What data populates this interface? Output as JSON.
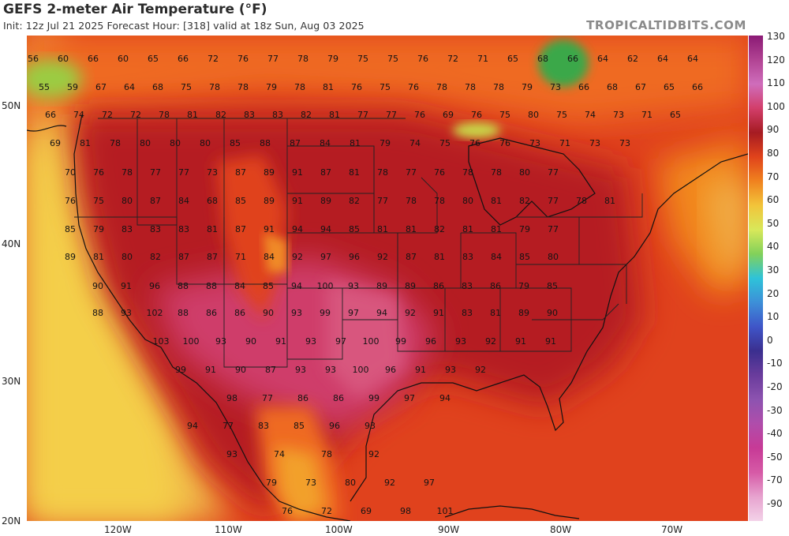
{
  "header": {
    "title": "GEFS 2-meter Air Temperature (°F)",
    "subtitle": "Init: 12z Jul 21 2025   Forecast Hour: [318]   valid at 18z Sun, Aug 03 2025",
    "brand": "TROPICALTIDBITS.COM"
  },
  "axes": {
    "lat_labels": [
      "50N",
      "40N",
      "30N",
      "20N"
    ],
    "lon_labels": [
      "120W",
      "110W",
      "100W",
      "90W",
      "80W",
      "70W"
    ]
  },
  "colorbar": {
    "labels": [
      "130",
      "120",
      "110",
      "100",
      "90",
      "80",
      "70",
      "60",
      "50",
      "40",
      "30",
      "20",
      "10",
      "0",
      "-10",
      "-20",
      "-30",
      "-40",
      "-50",
      "-70",
      "-90"
    ],
    "colors": [
      "#8b1a75",
      "#b14393",
      "#cf6dbb",
      "#d23e6a",
      "#a61b22",
      "#e0431b",
      "#f0821f",
      "#f2c43a",
      "#d8e85a",
      "#82d15a",
      "#2ec3d9",
      "#3d8fd8",
      "#3f55c8",
      "#3b2f8f",
      "#6a3c9c",
      "#8d53b0",
      "#b04dab",
      "#c73a96",
      "#d65aa6",
      "#e7a3cf",
      "#f3d2e8"
    ]
  },
  "map_values": [
    [
      "56",
      "60",
      "66",
      "60",
      "65",
      "66",
      "72",
      "76",
      "77",
      "78",
      "79",
      "75",
      "75",
      "76",
      "72",
      "71",
      "65",
      "68",
      "66",
      "64",
      "62",
      "64",
      "64"
    ],
    [
      "55",
      "59",
      "67",
      "64",
      "68",
      "75",
      "78",
      "78",
      "79",
      "78",
      "81",
      "76",
      "75",
      "76",
      "78",
      "78",
      "78",
      "79",
      "73",
      "66",
      "68",
      "67",
      "65",
      "66"
    ],
    [
      "66",
      "74",
      "72",
      "72",
      "78",
      "81",
      "82",
      "83",
      "83",
      "82",
      "81",
      "77",
      "77",
      "76",
      "69",
      "76",
      "75",
      "80",
      "75",
      "74",
      "73",
      "71",
      "65"
    ],
    [
      "69",
      "81",
      "78",
      "80",
      "80",
      "80",
      "85",
      "88",
      "87",
      "84",
      "81",
      "79",
      "74",
      "75",
      "76",
      "76",
      "73",
      "71",
      "73",
      "73"
    ],
    [
      "70",
      "76",
      "78",
      "77",
      "77",
      "73",
      "87",
      "89",
      "91",
      "87",
      "81",
      "78",
      "77",
      "76",
      "78",
      "78",
      "80",
      "77"
    ],
    [
      "76",
      "75",
      "80",
      "87",
      "84",
      "68",
      "85",
      "89",
      "91",
      "89",
      "82",
      "77",
      "78",
      "78",
      "80",
      "81",
      "82",
      "77",
      "78",
      "81"
    ],
    [
      "85",
      "79",
      "83",
      "83",
      "83",
      "81",
      "87",
      "91",
      "94",
      "94",
      "85",
      "81",
      "81",
      "82",
      "81",
      "81",
      "79",
      "77"
    ],
    [
      "89",
      "81",
      "80",
      "82",
      "87",
      "87",
      "71",
      "84",
      "92",
      "97",
      "96",
      "92",
      "87",
      "81",
      "83",
      "84",
      "85",
      "80"
    ],
    [
      "90",
      "91",
      "96",
      "88",
      "88",
      "84",
      "85",
      "94",
      "100",
      "93",
      "89",
      "89",
      "86",
      "83",
      "86",
      "79",
      "85"
    ],
    [
      "88",
      "93",
      "102",
      "88",
      "86",
      "86",
      "90",
      "93",
      "99",
      "97",
      "94",
      "92",
      "91",
      "83",
      "81",
      "89",
      "90"
    ],
    [
      "103",
      "100",
      "93",
      "90",
      "91",
      "93",
      "97",
      "100",
      "99",
      "96",
      "93",
      "92",
      "91",
      "91"
    ],
    [
      "99",
      "91",
      "90",
      "87",
      "93",
      "93",
      "100",
      "96",
      "91",
      "93",
      "92"
    ],
    [
      "98",
      "77",
      "86",
      "86",
      "99",
      "97",
      "94"
    ],
    [
      "94",
      "77",
      "83",
      "85",
      "96",
      "93"
    ],
    [
      "93",
      "74",
      "78",
      "92"
    ],
    [
      "79",
      "73",
      "80",
      "92",
      "97"
    ],
    [
      "76",
      "72",
      "69",
      "98",
      "101"
    ]
  ]
}
